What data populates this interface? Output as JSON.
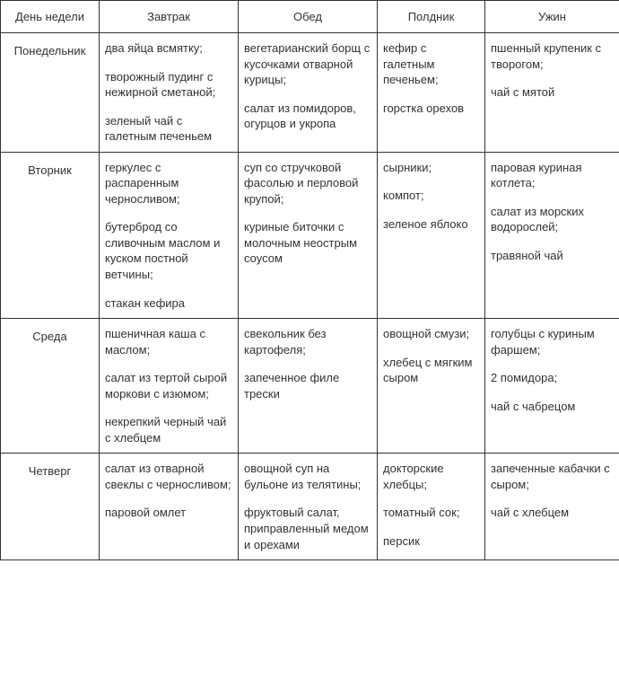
{
  "headers": {
    "day": "День недели",
    "meal1": "Завтрак",
    "meal2": "Обед",
    "meal3": "Полдник",
    "meal4": "Ужин"
  },
  "rows": [
    {
      "day": "Понедельник",
      "meals": [
        [
          "два яйца всмятку;",
          "творожный пудинг с нежирной сметаной;",
          "зеленый чай с галетным печеньем"
        ],
        [
          "вегетарианский борщ с кусочками отварной курицы;",
          "салат из помидоров, огурцов и укропа"
        ],
        [
          "кефир с галетным печеньем;",
          "горстка орехов"
        ],
        [
          "пшенный крупеник с творогом;",
          "чай с мятой"
        ]
      ]
    },
    {
      "day": "Вторник",
      "meals": [
        [
          "геркулес с распаренным черносливом;",
          "бутерброд со сливочным маслом и куском постной ветчины;",
          "стакан кефира"
        ],
        [
          "суп со стручковой фасолью и перловой крупой;",
          "куриные биточки с молочным неострым соусом"
        ],
        [
          "сырники;",
          "компот;",
          "зеленое яблоко"
        ],
        [
          "паровая куриная котлета;",
          "салат из морских водорослей;",
          "травяной чай"
        ]
      ]
    },
    {
      "day": "Среда",
      "meals": [
        [
          "пшеничная каша с маслом;",
          "салат из тертой сырой моркови с изюмом;",
          "некрепкий черный чай с хлебцем"
        ],
        [
          "свекольник без картофеля;",
          "запеченное филе трески"
        ],
        [
          "овощной смузи;",
          "хлебец с мягким сыром"
        ],
        [
          "голубцы с куриным фаршем;",
          "2 помидора;",
          "чай с чабрецом"
        ]
      ]
    },
    {
      "day": "Четверг",
      "meals": [
        [
          "салат из отварной свеклы с черносливом;",
          "паровой омлет"
        ],
        [
          "овощной суп на бульоне из телятины;",
          "фруктовый салат, приправленный медом и орехами"
        ],
        [
          "докторские хлебцы;",
          "томатный сок;",
          "персик"
        ],
        [
          "запеченные кабачки с сыром;",
          "чай с хлебцем"
        ]
      ]
    }
  ]
}
